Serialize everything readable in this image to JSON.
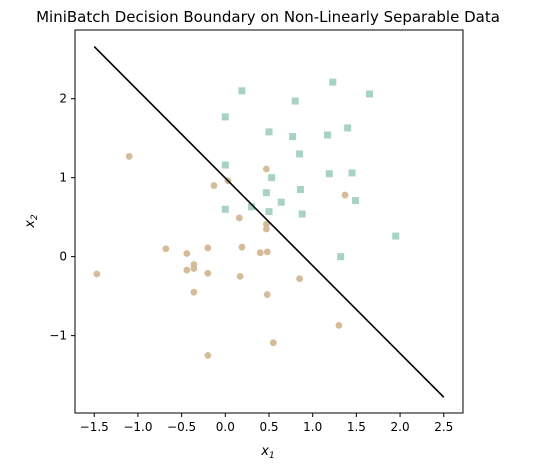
{
  "chart_data": {
    "type": "scatter",
    "title": "MiniBatch Decision Boundary on Non-Linearly Separable Data",
    "xlabel": "x",
    "xlabel_sub": "1",
    "ylabel": "x",
    "ylabel_sub": "2",
    "xlim": [
      -1.72,
      2.72
    ],
    "ylim": [
      -1.98,
      2.87
    ],
    "xticks": [
      -1.5,
      -1.0,
      -0.5,
      0.0,
      0.5,
      1.0,
      1.5,
      2.0,
      2.5
    ],
    "xtick_labels": [
      "−1.5",
      "−1.0",
      "−0.5",
      "0.0",
      "0.5",
      "1.0",
      "1.5",
      "2.0",
      "2.5"
    ],
    "yticks": [
      -1,
      0,
      1,
      2
    ],
    "ytick_labels": [
      "−1",
      "0",
      "1",
      "2"
    ],
    "grid": false,
    "legend": "none",
    "colors": {
      "class0": "#d4bc9a",
      "class1": "#a9d2c6",
      "boundary": "#000000"
    },
    "series": [
      {
        "marker": "circle",
        "color": "#d4bc9a",
        "points": [
          [
            -1.47,
            -0.22
          ],
          [
            -1.1,
            1.27
          ],
          [
            -0.68,
            0.1
          ],
          [
            -0.44,
            0.04
          ],
          [
            -0.44,
            -0.17
          ],
          [
            -0.36,
            -0.1
          ],
          [
            -0.36,
            -0.15
          ],
          [
            -0.36,
            -0.45
          ],
          [
            -0.2,
            0.11
          ],
          [
            -0.2,
            -0.21
          ],
          [
            -0.2,
            -1.25
          ],
          [
            -0.13,
            0.9
          ],
          [
            0.03,
            0.96
          ],
          [
            0.16,
            0.49
          ],
          [
            0.17,
            -0.25
          ],
          [
            0.19,
            0.12
          ],
          [
            0.4,
            0.05
          ],
          [
            0.47,
            1.11
          ],
          [
            0.47,
            0.41
          ],
          [
            0.47,
            0.35
          ],
          [
            0.48,
            0.06
          ],
          [
            0.48,
            -0.48
          ],
          [
            0.55,
            -1.09
          ],
          [
            0.85,
            -0.28
          ],
          [
            1.3,
            -0.87
          ],
          [
            1.37,
            0.78
          ]
        ]
      },
      {
        "marker": "square",
        "color": "#a9d2c6",
        "points": [
          [
            0.0,
            1.77
          ],
          [
            0.0,
            1.16
          ],
          [
            0.0,
            0.6
          ],
          [
            0.19,
            2.1
          ],
          [
            0.3,
            0.63
          ],
          [
            0.47,
            0.81
          ],
          [
            0.5,
            1.58
          ],
          [
            0.5,
            0.57
          ],
          [
            0.53,
            1.0
          ],
          [
            0.64,
            0.69
          ],
          [
            0.77,
            1.52
          ],
          [
            0.8,
            1.97
          ],
          [
            0.85,
            1.3
          ],
          [
            0.86,
            0.85
          ],
          [
            0.88,
            0.54
          ],
          [
            1.17,
            1.54
          ],
          [
            1.19,
            1.05
          ],
          [
            1.23,
            2.21
          ],
          [
            1.32,
            0.0
          ],
          [
            1.4,
            1.63
          ],
          [
            1.45,
            1.06
          ],
          [
            1.49,
            0.71
          ],
          [
            1.65,
            2.06
          ],
          [
            1.95,
            0.26
          ]
        ]
      }
    ],
    "decision_boundary": {
      "x": [
        -1.5,
        2.5
      ],
      "y": [
        2.66,
        -1.78
      ]
    }
  }
}
